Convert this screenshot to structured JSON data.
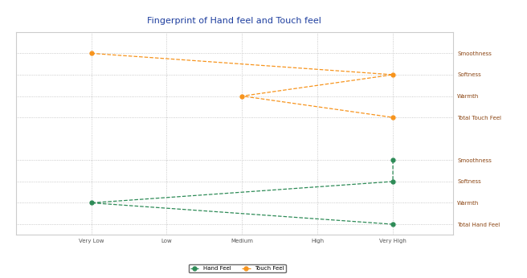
{
  "chart_data": {
    "type": "line",
    "title": "Fingerprint of Hand feel and Touch feel",
    "orientation": "horizontal",
    "categories": [
      "Smoothness",
      "Softness",
      "Warmth",
      "Total Touch Feel",
      null,
      "Smoothness",
      "Softness",
      "Warmth",
      "Total Hand Feel"
    ],
    "xlim": [
      0,
      5.8
    ],
    "xticks": [
      {
        "value": 1,
        "label": "Very Low"
      },
      {
        "value": 2,
        "label": "Low"
      },
      {
        "value": 3,
        "label": "Medium"
      },
      {
        "value": 4,
        "label": "High"
      },
      {
        "value": 5,
        "label": "Very High"
      }
    ],
    "grid": true,
    "legend": "lower center",
    "series": [
      {
        "name": "Hand Feel",
        "color": "#2e8b57",
        "marker": "o",
        "line_style": "dashed",
        "values": [
          null,
          null,
          null,
          null,
          null,
          5,
          5,
          1,
          5
        ]
      },
      {
        "name": "Touch Feel",
        "color": "#f7941d",
        "marker": "o",
        "line_style": "dashed",
        "values": [
          1,
          5,
          3,
          5,
          null,
          null,
          null,
          null,
          null
        ]
      }
    ]
  }
}
